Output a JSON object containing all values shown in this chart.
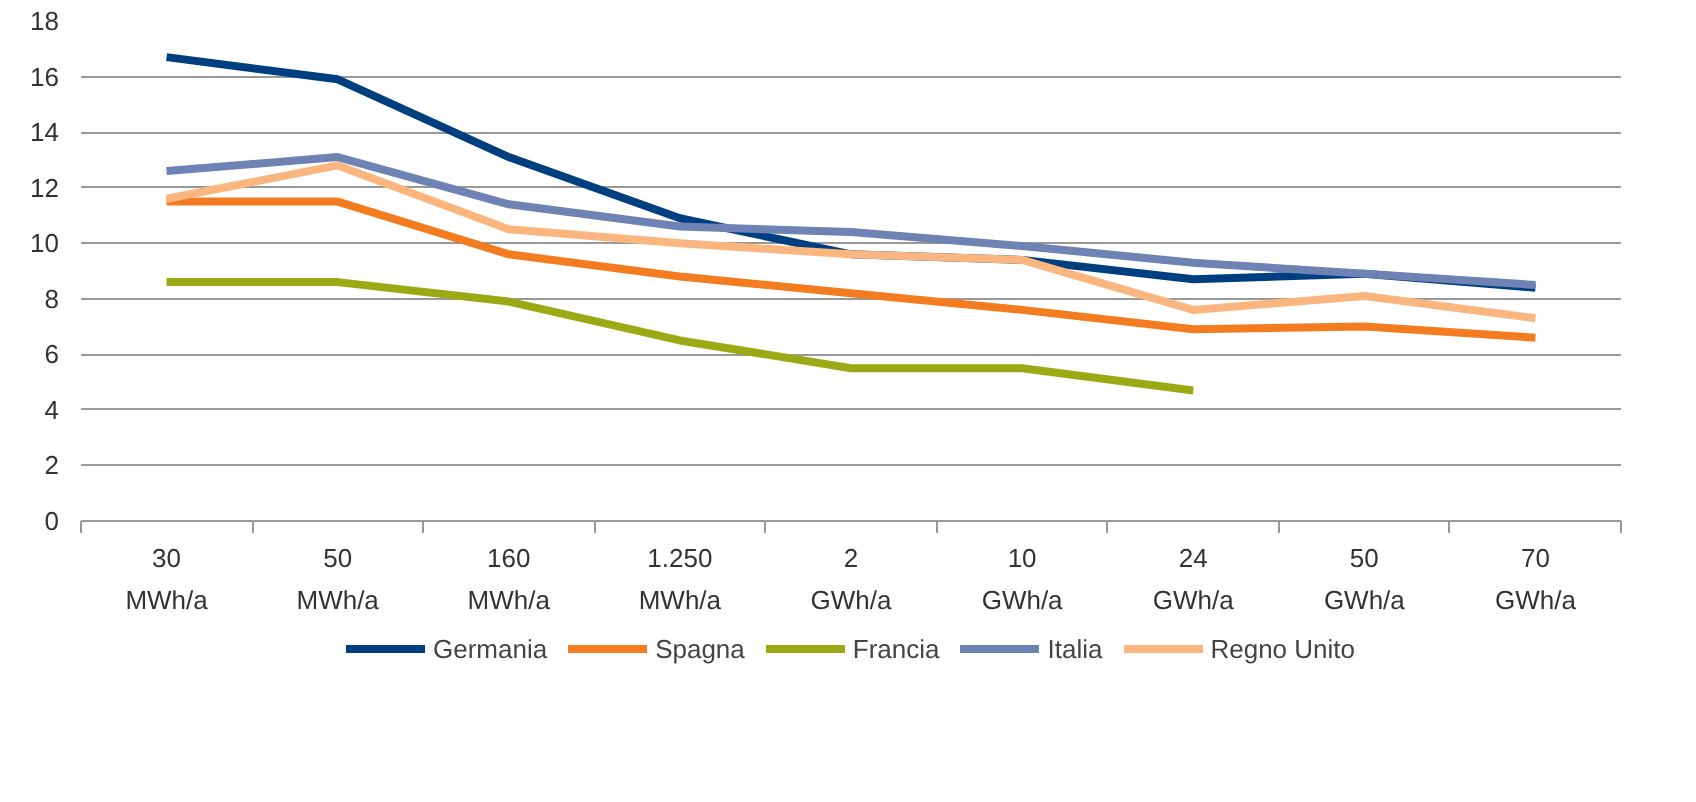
{
  "chart_data": {
    "type": "line",
    "categories": [
      "30\nMWh/a",
      "50\nMWh/a",
      "160\nMWh/a",
      "1.250\nMWh/a",
      "2\nGWh/a",
      "10\nGWh/a",
      "24\nGWh/a",
      "50\nGWh/a",
      "70\nGWh/a"
    ],
    "series": [
      {
        "name": "Germania",
        "color": "#003f7f",
        "values": [
          16.7,
          15.9,
          13.1,
          10.9,
          9.6,
          9.4,
          8.7,
          8.9,
          8.4
        ]
      },
      {
        "name": "Spagna",
        "color": "#f47c20",
        "values": [
          11.5,
          11.5,
          9.6,
          8.8,
          8.2,
          7.6,
          6.9,
          7.0,
          6.6
        ]
      },
      {
        "name": "Francia",
        "color": "#9aaa14",
        "values": [
          8.6,
          8.6,
          7.9,
          6.5,
          5.5,
          5.5,
          4.7,
          null,
          null
        ]
      },
      {
        "name": "Italia",
        "color": "#6e82b4",
        "values": [
          12.6,
          13.1,
          11.4,
          10.6,
          10.4,
          9.9,
          9.3,
          8.9,
          8.5
        ]
      },
      {
        "name": "Regno Unito",
        "color": "#fbb680",
        "values": [
          11.6,
          12.8,
          10.5,
          10.0,
          9.6,
          9.4,
          7.6,
          8.1,
          7.3
        ]
      }
    ],
    "ylim": [
      0,
      18
    ],
    "yticks": [
      0,
      2,
      4,
      6,
      8,
      10,
      12,
      14,
      16,
      18
    ],
    "grid": "y",
    "legend": "bottom",
    "marker": "none",
    "line_style": "solid"
  }
}
